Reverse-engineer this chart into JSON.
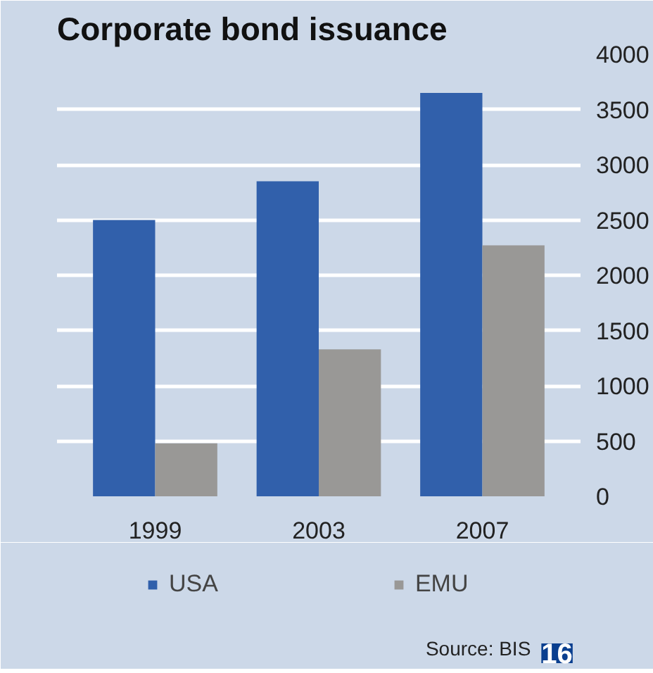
{
  "chart_data": {
    "type": "bar",
    "title": "Corporate bond issuance",
    "categories": [
      "1999",
      "2003",
      "2007"
    ],
    "series": [
      {
        "name": "USA",
        "color": "#3160ab",
        "values": [
          2500,
          2850,
          3650
        ]
      },
      {
        "name": "EMU",
        "color": "#999896",
        "values": [
          480,
          1330,
          2270
        ]
      }
    ],
    "ylim": [
      0,
      4000
    ],
    "yticks": [
      0,
      500,
      1000,
      1500,
      2000,
      2500,
      3000,
      3500,
      4000
    ],
    "grid": "y",
    "legend": "bottom",
    "annotations": [
      "Source: BIS",
      "16"
    ]
  }
}
